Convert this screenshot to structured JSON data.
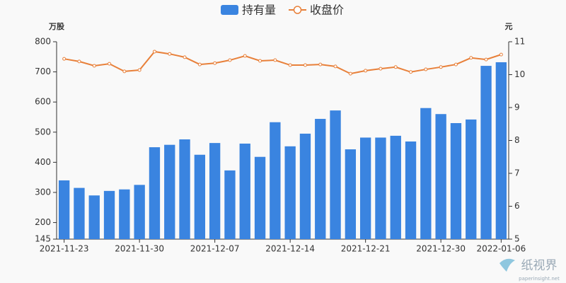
{
  "chart_data": {
    "type": "bar",
    "ylabel": "万股",
    "y2label": "元",
    "legend": "top",
    "categories": [
      "2021-11-23",
      null,
      null,
      null,
      null,
      "2021-11-30",
      null,
      null,
      null,
      null,
      "2021-12-07",
      null,
      null,
      null,
      null,
      "2021-12-14",
      null,
      null,
      null,
      null,
      "2021-12-21",
      null,
      null,
      null,
      null,
      "2021-12-30",
      null,
      null,
      null,
      "2022-01-06"
    ],
    "series": [
      {
        "name": "持有量",
        "type": "bar",
        "color": "#3a84e0",
        "values": [
          340,
          315,
          290,
          305,
          310,
          325,
          450,
          458,
          476,
          425,
          464,
          373,
          462,
          418,
          533,
          453,
          495,
          544,
          572,
          443,
          482,
          482,
          488,
          469,
          580,
          560,
          530,
          542,
          720,
          732
        ]
      },
      {
        "name": "收盘价",
        "type": "line",
        "color": "#e8803a",
        "axis": "y2",
        "values": [
          10.48,
          10.4,
          10.27,
          10.33,
          10.1,
          10.14,
          10.7,
          10.63,
          10.53,
          10.31,
          10.35,
          10.44,
          10.57,
          10.42,
          10.44,
          10.29,
          10.29,
          10.31,
          10.25,
          10.03,
          10.12,
          10.18,
          10.23,
          10.08,
          10.16,
          10.23,
          10.31,
          10.51,
          10.46,
          10.61
        ]
      }
    ],
    "ylim": [
      145,
      800
    ],
    "yticks": [
      145,
      200,
      300,
      400,
      500,
      600,
      700,
      800
    ],
    "y2lim": [
      5,
      11
    ],
    "y2ticks": [
      5,
      6,
      7,
      8,
      9,
      10,
      11
    ],
    "watermark": {
      "title": "纸视界",
      "url": "paperinsight.net"
    }
  }
}
